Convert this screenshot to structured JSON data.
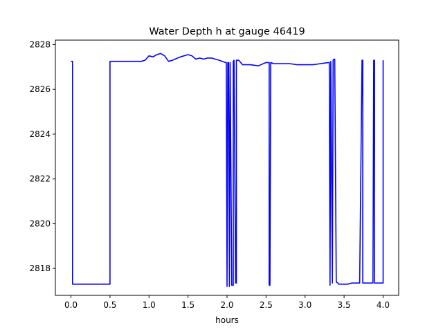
{
  "chart_data": {
    "type": "line",
    "title": "Water Depth h at gauge 46419",
    "xlabel": "hours",
    "ylabel": "",
    "xlim": [
      -0.2,
      4.2
    ],
    "ylim": [
      2816.8,
      2828.2
    ],
    "xticks": [
      0.0,
      0.5,
      1.0,
      1.5,
      2.0,
      2.5,
      3.0,
      3.5,
      4.0
    ],
    "xtick_labels": [
      "0.0",
      "0.5",
      "1.0",
      "1.5",
      "2.0",
      "2.5",
      "3.0",
      "3.5",
      "4.0"
    ],
    "yticks": [
      2818,
      2820,
      2822,
      2824,
      2826,
      2828
    ],
    "ytick_labels": [
      "2818",
      "2820",
      "2822",
      "2824",
      "2826",
      "2828"
    ],
    "grid": false,
    "series": [
      {
        "color": "#0000ff",
        "x": [
          0.0,
          0.02,
          0.02,
          0.05,
          0.5,
          0.5,
          0.55,
          0.7,
          0.9,
          0.95,
          1.0,
          1.05,
          1.1,
          1.15,
          1.2,
          1.25,
          1.3,
          1.4,
          1.5,
          1.55,
          1.6,
          1.65,
          1.7,
          1.75,
          1.8,
          1.9,
          1.98,
          1.99,
          2.0,
          2.01,
          2.02,
          2.03,
          2.03,
          2.04,
          2.06,
          2.08,
          2.08,
          2.09,
          2.11,
          2.12,
          2.12,
          2.13,
          2.15,
          2.2,
          2.3,
          2.4,
          2.5,
          2.53,
          2.54,
          2.54,
          2.55,
          2.56,
          2.56,
          2.6,
          2.7,
          2.8,
          2.9,
          3.0,
          3.1,
          3.2,
          3.3,
          3.31,
          3.32,
          3.33,
          3.33,
          3.35,
          3.36,
          3.37,
          3.38,
          3.4,
          3.42,
          3.43,
          3.45,
          3.5,
          3.55,
          3.6,
          3.65,
          3.7,
          3.73,
          3.74,
          3.74,
          3.75,
          3.76,
          3.8,
          3.87,
          3.88,
          3.89,
          3.89,
          3.9,
          3.95,
          4.0,
          4.0
        ],
        "y": [
          2827.25,
          2827.25,
          2817.3,
          2817.3,
          2817.3,
          2827.25,
          2827.25,
          2827.25,
          2827.25,
          2827.3,
          2827.5,
          2827.45,
          2827.55,
          2827.6,
          2827.5,
          2827.25,
          2827.3,
          2827.45,
          2827.55,
          2827.5,
          2827.35,
          2827.4,
          2827.35,
          2827.4,
          2827.4,
          2827.3,
          2827.2,
          2827.2,
          2817.2,
          2827.2,
          2827.2,
          2817.2,
          2817.2,
          2827.2,
          2817.25,
          2817.25,
          2827.25,
          2827.3,
          2817.35,
          2817.35,
          2827.3,
          2827.3,
          2827.3,
          2827.1,
          2827.1,
          2827.05,
          2827.2,
          2827.2,
          2827.2,
          2817.25,
          2817.25,
          2827.2,
          2827.2,
          2827.15,
          2827.15,
          2827.15,
          2827.1,
          2827.1,
          2827.1,
          2827.15,
          2827.2,
          2827.2,
          2817.25,
          2827.25,
          2827.25,
          2817.35,
          2827.3,
          2827.35,
          2827.35,
          2817.4,
          2817.35,
          2817.3,
          2817.3,
          2817.3,
          2817.3,
          2817.35,
          2817.35,
          2817.35,
          2827.3,
          2827.3,
          2817.35,
          2817.35,
          2817.35,
          2817.35,
          2817.35,
          2827.3,
          2827.3,
          2817.35,
          2817.35,
          2817.35,
          2817.35,
          2827.3
        ]
      }
    ]
  }
}
